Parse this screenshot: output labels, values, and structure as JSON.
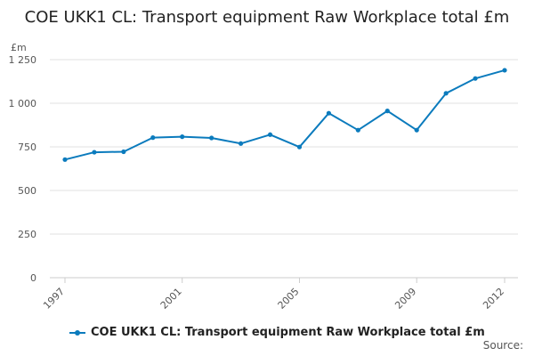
{
  "chart_data": {
    "type": "line",
    "title": "COE UKK1 CL: Transport equipment Raw Workplace total £m",
    "xlabel": "",
    "ylabel": "£m",
    "x": [
      1997,
      1998,
      1999,
      2000,
      2001,
      2002,
      2003,
      2004,
      2005,
      2006,
      2007,
      2008,
      2009,
      2010,
      2011,
      2012
    ],
    "x_tick_labels": [
      "1997",
      "2001",
      "2005",
      "2009",
      "2012"
    ],
    "y_tick_labels": [
      "0",
      "250",
      "500",
      "750",
      "1 000",
      "1 250"
    ],
    "ylim": [
      0,
      1250
    ],
    "grid": true,
    "legend_position": "bottom",
    "series": [
      {
        "name": "COE UKK1 CL: Transport equipment Raw Workplace total £m",
        "color": "#0b7bbd",
        "values": [
          677,
          719,
          722,
          803,
          808,
          801,
          769,
          820,
          749,
          943,
          846,
          956,
          846,
          1057,
          1142,
          1189
        ]
      }
    ]
  },
  "footer": {
    "source_label": "Source:"
  }
}
